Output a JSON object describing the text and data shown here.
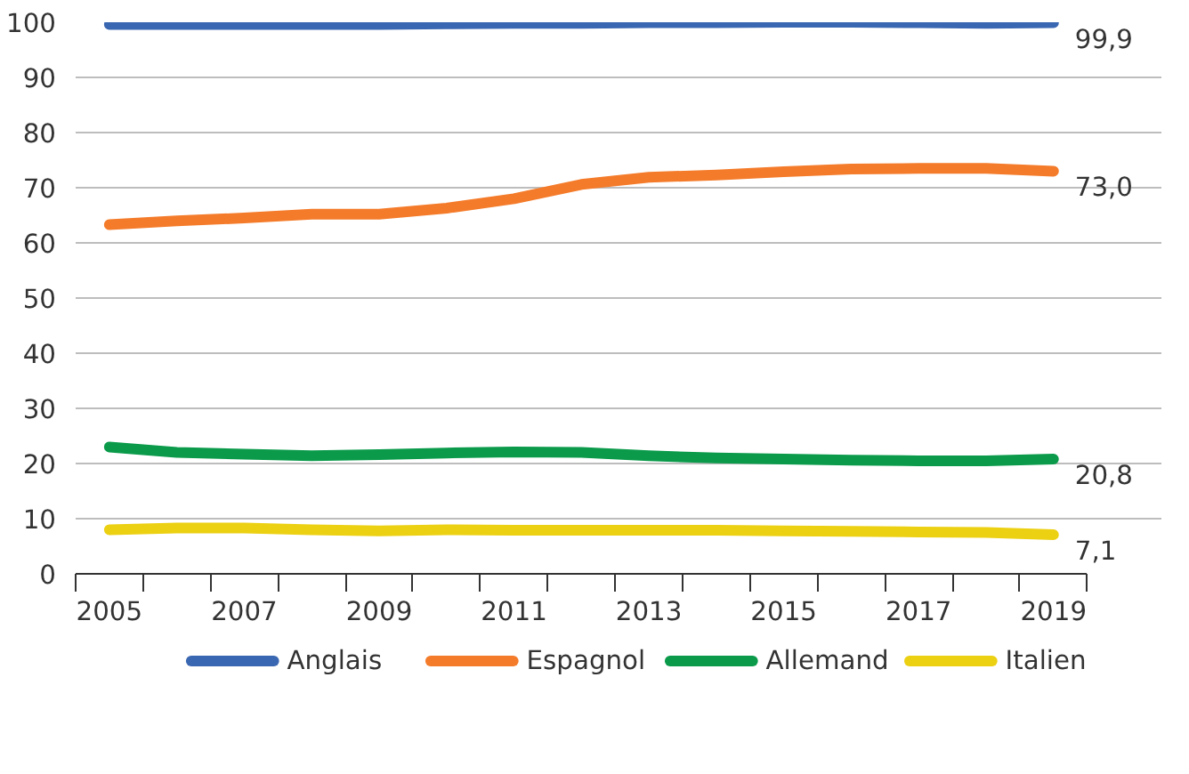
{
  "chart_data": {
    "type": "line",
    "categories": [
      "2005",
      null,
      "2007",
      null,
      "2009",
      null,
      "2011",
      null,
      "2013",
      null,
      "2015",
      null,
      "2017",
      null,
      "2019"
    ],
    "series": [
      {
        "name": "Anglais",
        "color": "#3a67b1",
        "values": [
          99.6,
          99.6,
          99.6,
          99.6,
          99.6,
          99.7,
          99.8,
          99.8,
          99.9,
          99.9,
          100,
          100,
          99.9,
          99.8,
          99.9
        ]
      },
      {
        "name": "Espagnol",
        "color": "#f47b2a",
        "values": [
          63.3,
          64.0,
          64.5,
          65.2,
          65.2,
          66.3,
          68.0,
          70.6,
          71.9,
          72.3,
          72.9,
          73.4,
          73.5,
          73.5,
          73.0
        ]
      },
      {
        "name": "Allemand",
        "color": "#0a9a4a",
        "values": [
          23.0,
          22.0,
          21.7,
          21.4,
          21.6,
          21.9,
          22.1,
          22.0,
          21.4,
          21.0,
          20.8,
          20.6,
          20.5,
          20.5,
          20.8
        ]
      },
      {
        "name": "Italien",
        "color": "#ecd012",
        "values": [
          8.0,
          8.3,
          8.3,
          8.0,
          7.8,
          8.0,
          7.9,
          7.9,
          7.9,
          7.9,
          7.8,
          7.7,
          7.6,
          7.5,
          7.1
        ]
      }
    ],
    "ylim": [
      0,
      100
    ],
    "yticks": [
      0,
      10,
      20,
      30,
      40,
      50,
      60,
      70,
      80,
      90,
      100
    ],
    "grid": "y",
    "legend": "bottom",
    "marker": "none",
    "line_style": "solid",
    "annotations": [
      {
        "text": "99,9",
        "x": "2019",
        "y": 99.9
      },
      {
        "text": "73,0",
        "x": "2019",
        "y": 73.0
      },
      {
        "text": "20,8",
        "x": "2019",
        "y": 20.8
      },
      {
        "text": "7,1",
        "x": "2019",
        "y": 7.1
      }
    ]
  }
}
